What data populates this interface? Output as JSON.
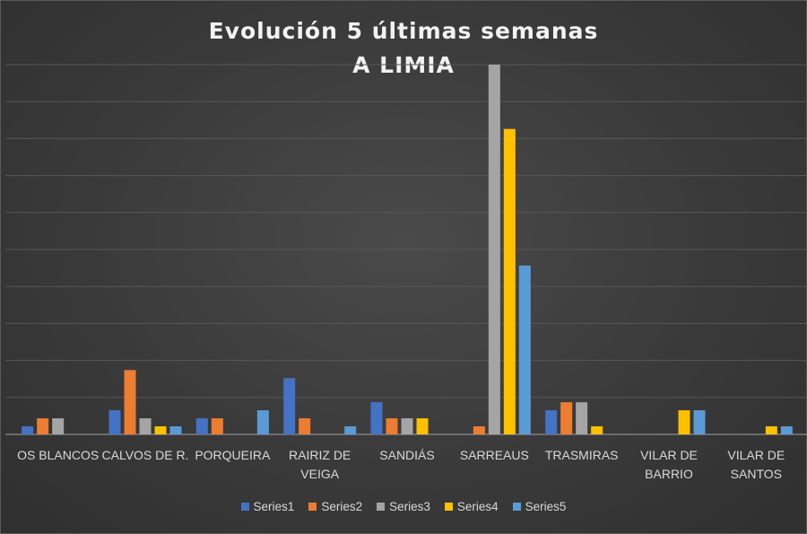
{
  "chart_data": {
    "type": "bar",
    "title": "Evolución 5 últimas semanas",
    "subtitle": "A LIMIA",
    "categories": [
      [
        "OS BLANCOS"
      ],
      [
        "CALVOS DE R."
      ],
      [
        "PORQUEIRA"
      ],
      [
        "RAIRIZ DE",
        "VEIGA"
      ],
      [
        "SANDIÁS"
      ],
      [
        "SARREAUS"
      ],
      [
        "TRASMIRAS"
      ],
      [
        "VILAR DE",
        "BARRIO"
      ],
      [
        "VILAR DE",
        "SANTOS"
      ]
    ],
    "ylim": [
      0,
      46
    ],
    "grid": true,
    "legend_position": "bottom",
    "series": [
      {
        "name": "Series1",
        "color": "#4472c4",
        "values": [
          1,
          3,
          2,
          7,
          4,
          0,
          3,
          0,
          0
        ]
      },
      {
        "name": "Series2",
        "color": "#ed7d31",
        "values": [
          2,
          8,
          2,
          2,
          2,
          1,
          4,
          0,
          0
        ]
      },
      {
        "name": "Series3",
        "color": "#a5a5a5",
        "values": [
          2,
          2,
          0,
          0,
          2,
          46,
          4,
          0,
          0
        ]
      },
      {
        "name": "Series4",
        "color": "#ffc000",
        "values": [
          0,
          1,
          0,
          0,
          2,
          38,
          1,
          3,
          1
        ]
      },
      {
        "name": "Series5",
        "color": "#5b9bd5",
        "values": [
          0,
          1,
          3,
          1,
          0,
          21,
          0,
          3,
          1
        ]
      }
    ]
  }
}
